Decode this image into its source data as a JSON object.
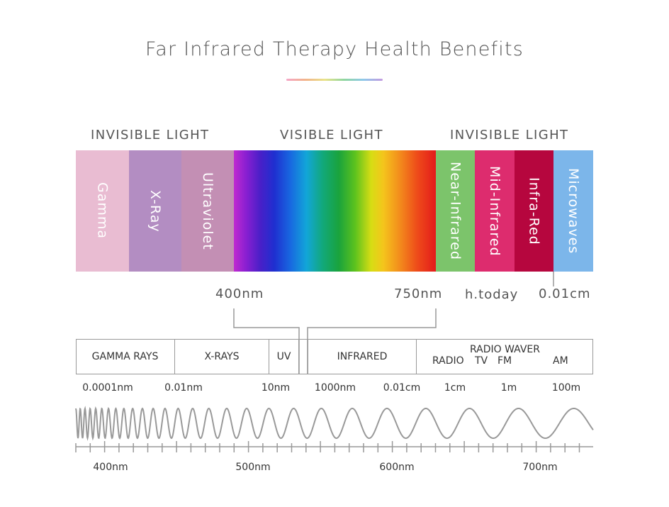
{
  "title": "Far Infrared Therapy Health Benefits",
  "headers": {
    "invisible_left": "INVISIBLE LIGHT",
    "visible": "VISIBLE LIGHT",
    "invisible_right": "INVISIBLE LIGHT"
  },
  "bands": [
    {
      "label": "Gamma",
      "color": "#e9bcd2"
    },
    {
      "label": "X-Ray",
      "color": "#b38dc2"
    },
    {
      "label": "Ultraviolet",
      "color": "#c38fb4"
    },
    {
      "label": "Near-Infrared",
      "color": "#7cc46b"
    },
    {
      "label": "Mid-Infrared",
      "color": "#dd2c6e"
    },
    {
      "label": "Infra-Red",
      "color": "#b6063e"
    },
    {
      "label": "Microwaves",
      "color": "#7cb6ea"
    }
  ],
  "markers": {
    "m400": "400nm",
    "m750": "750nm",
    "watermark": "h.today",
    "m001": "0.01cm"
  },
  "scale": {
    "cells": {
      "gamma": "GAMMA RAYS",
      "xrays": "X-RAYS",
      "uv": "UV",
      "infrared": "INFRARED",
      "radio_title": "RADIO WAVER",
      "radio": "RADIO",
      "tv": "TV",
      "fm": "FM",
      "am": "AM"
    },
    "ticks": {
      "t1": "0.0001nm",
      "t2": "0.01nm",
      "t3": "10nm",
      "t4": "1000nm",
      "t5": "0.01cm",
      "t6": "1cm",
      "t7": "1m",
      "t8": "100m"
    }
  },
  "wave_axis": {
    "labels": {
      "a400": "400nm",
      "a500": "500nm",
      "a600": "600nm",
      "a700": "700nm"
    }
  }
}
